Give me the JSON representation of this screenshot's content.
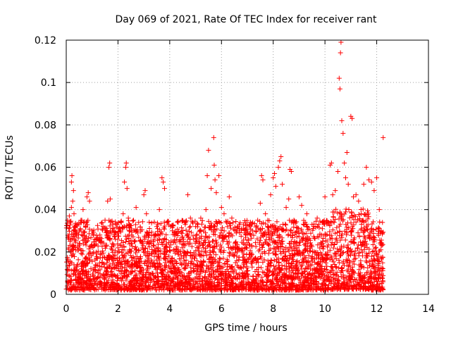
{
  "chart_data": {
    "type": "scatter",
    "title": "Day 069 of 2021, Rate Of TEC Index for receiver rant",
    "xlabel": "GPS time / hours",
    "ylabel": "ROTI / TECUs",
    "xlim": [
      0,
      14
    ],
    "ylim": [
      0,
      0.12
    ],
    "xticks": [
      0,
      2,
      4,
      6,
      8,
      10,
      12,
      14
    ],
    "xtick_labels": [
      "0",
      "2",
      "4",
      "6",
      "8",
      "10",
      "12",
      "14"
    ],
    "yticks": [
      0,
      0.02,
      0.04,
      0.06,
      0.08,
      0.1,
      0.12
    ],
    "ytick_labels": [
      "0",
      "0.02",
      "0.04",
      "0.06",
      "0.08",
      "0.1",
      "0.12"
    ],
    "grid": true,
    "marker": "+",
    "marker_color": "#ff0000",
    "series": [
      {
        "name": "ROTI",
        "color": "#ff0000",
        "points": [
          [
            0.05,
            0.035
          ],
          [
            0.1,
            0.031
          ],
          [
            0.12,
            0.037
          ],
          [
            0.15,
            0.025
          ],
          [
            0.2,
            0.041
          ],
          [
            0.2,
            0.053
          ],
          [
            0.22,
            0.056
          ],
          [
            0.25,
            0.044
          ],
          [
            0.28,
            0.049
          ],
          [
            0.3,
            0.038
          ],
          [
            0.35,
            0.032
          ],
          [
            0.4,
            0.028
          ],
          [
            0.5,
            0.024
          ],
          [
            0.6,
            0.035
          ],
          [
            0.65,
            0.04
          ],
          [
            0.75,
            0.032
          ],
          [
            0.8,
            0.046
          ],
          [
            0.85,
            0.048
          ],
          [
            0.9,
            0.044
          ],
          [
            1.0,
            0.03
          ],
          [
            1.1,
            0.026
          ],
          [
            1.3,
            0.028
          ],
          [
            1.5,
            0.035
          ],
          [
            1.6,
            0.044
          ],
          [
            1.65,
            0.06
          ],
          [
            1.68,
            0.062
          ],
          [
            1.7,
            0.045
          ],
          [
            1.8,
            0.033
          ],
          [
            1.9,
            0.026
          ],
          [
            2.0,
            0.022
          ],
          [
            2.1,
            0.03
          ],
          [
            2.2,
            0.038
          ],
          [
            2.25,
            0.053
          ],
          [
            2.3,
            0.06
          ],
          [
            2.32,
            0.062
          ],
          [
            2.35,
            0.05
          ],
          [
            2.4,
            0.036
          ],
          [
            2.5,
            0.024
          ],
          [
            2.6,
            0.035
          ],
          [
            2.7,
            0.041
          ],
          [
            2.8,
            0.034
          ],
          [
            3.0,
            0.047
          ],
          [
            3.05,
            0.049
          ],
          [
            3.1,
            0.038
          ],
          [
            3.2,
            0.029
          ],
          [
            3.4,
            0.026
          ],
          [
            3.5,
            0.032
          ],
          [
            3.6,
            0.04
          ],
          [
            3.7,
            0.055
          ],
          [
            3.75,
            0.053
          ],
          [
            3.8,
            0.05
          ],
          [
            3.9,
            0.034
          ],
          [
            4.1,
            0.03
          ],
          [
            4.3,
            0.029
          ],
          [
            4.5,
            0.027
          ],
          [
            4.6,
            0.033
          ],
          [
            4.7,
            0.047
          ],
          [
            4.8,
            0.036
          ],
          [
            5.0,
            0.032
          ],
          [
            5.2,
            0.036
          ],
          [
            5.4,
            0.04
          ],
          [
            5.45,
            0.056
          ],
          [
            5.5,
            0.068
          ],
          [
            5.6,
            0.05
          ],
          [
            5.7,
            0.074
          ],
          [
            5.72,
            0.061
          ],
          [
            5.75,
            0.054
          ],
          [
            5.8,
            0.048
          ],
          [
            5.9,
            0.056
          ],
          [
            6.0,
            0.041
          ],
          [
            6.1,
            0.038
          ],
          [
            6.3,
            0.046
          ],
          [
            6.4,
            0.036
          ],
          [
            6.6,
            0.03
          ],
          [
            6.9,
            0.029
          ],
          [
            7.0,
            0.033
          ],
          [
            7.2,
            0.03
          ],
          [
            7.4,
            0.035
          ],
          [
            7.5,
            0.043
          ],
          [
            7.55,
            0.056
          ],
          [
            7.6,
            0.054
          ],
          [
            7.7,
            0.038
          ],
          [
            7.9,
            0.047
          ],
          [
            8.0,
            0.055
          ],
          [
            8.05,
            0.057
          ],
          [
            8.1,
            0.051
          ],
          [
            8.2,
            0.06
          ],
          [
            8.25,
            0.063
          ],
          [
            8.3,
            0.065
          ],
          [
            8.35,
            0.052
          ],
          [
            8.5,
            0.041
          ],
          [
            8.6,
            0.045
          ],
          [
            8.65,
            0.059
          ],
          [
            8.7,
            0.058
          ],
          [
            8.8,
            0.035
          ],
          [
            9.0,
            0.046
          ],
          [
            9.1,
            0.042
          ],
          [
            9.3,
            0.038
          ],
          [
            9.5,
            0.033
          ],
          [
            9.7,
            0.036
          ],
          [
            9.9,
            0.031
          ],
          [
            10.0,
            0.046
          ],
          [
            10.2,
            0.061
          ],
          [
            10.25,
            0.062
          ],
          [
            10.3,
            0.047
          ],
          [
            10.4,
            0.049
          ],
          [
            10.5,
            0.058
          ],
          [
            10.55,
            0.102
          ],
          [
            10.58,
            0.097
          ],
          [
            10.6,
            0.114
          ],
          [
            10.62,
            0.119
          ],
          [
            10.65,
            0.082
          ],
          [
            10.7,
            0.076
          ],
          [
            10.75,
            0.062
          ],
          [
            10.8,
            0.055
          ],
          [
            10.85,
            0.067
          ],
          [
            10.9,
            0.052
          ],
          [
            11.0,
            0.084
          ],
          [
            11.05,
            0.083
          ],
          [
            11.1,
            0.046
          ],
          [
            11.2,
            0.047
          ],
          [
            11.3,
            0.044
          ],
          [
            11.4,
            0.038
          ],
          [
            11.5,
            0.052
          ],
          [
            11.6,
            0.06
          ],
          [
            11.7,
            0.054
          ],
          [
            11.8,
            0.053
          ],
          [
            11.9,
            0.049
          ],
          [
            12.0,
            0.055
          ],
          [
            12.1,
            0.04
          ],
          [
            12.2,
            0.024
          ],
          [
            12.25,
            0.074
          ],
          [
            12.2,
            0.012
          ]
        ],
        "cloud": {
          "x_range": [
            0.0,
            12.25
          ],
          "baseline_min": 0.002,
          "baseline_max": 0.035,
          "density_per_hour": 300
        }
      }
    ]
  }
}
